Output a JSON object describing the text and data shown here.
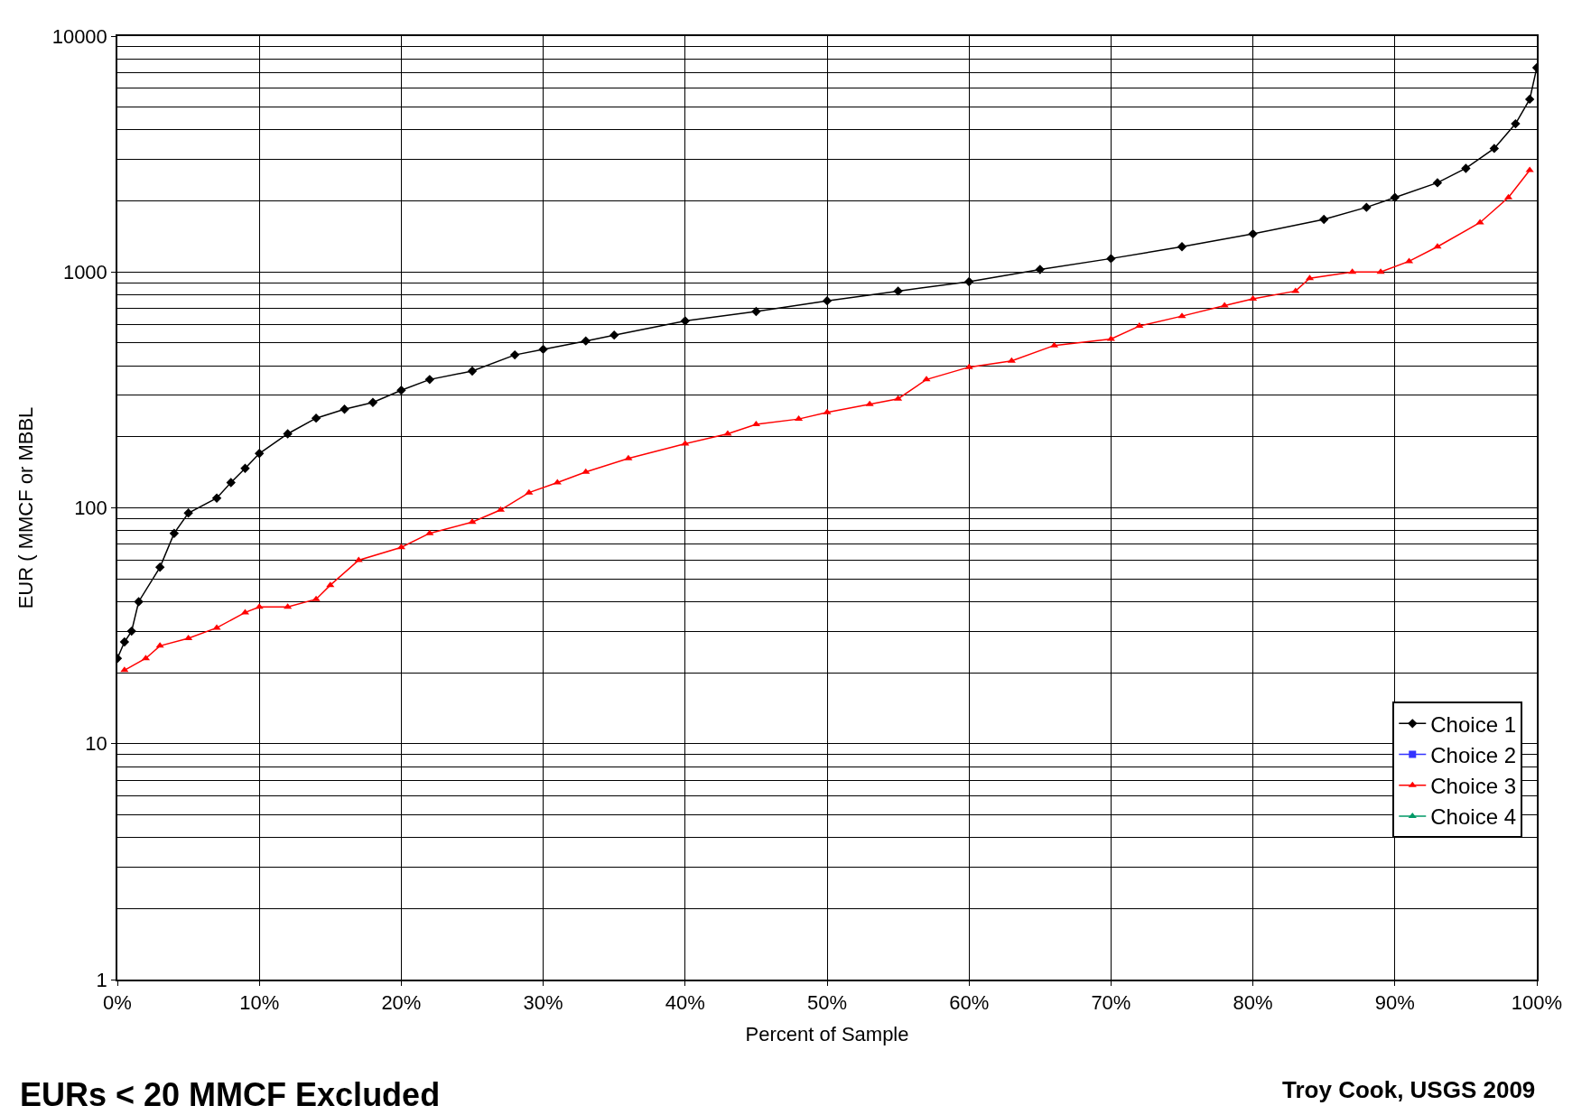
{
  "chart_data": {
    "type": "line",
    "xlabel": "Percent of Sample",
    "ylabel": "EUR ( MMCF or MBBL",
    "log": "y",
    "grid": true,
    "legend": "bottom right",
    "xlim": [
      0,
      100
    ],
    "ylim": [
      1,
      10000
    ],
    "xticks": [
      {
        "value": 0,
        "label": "0%"
      },
      {
        "value": 10,
        "label": "10%"
      },
      {
        "value": 20,
        "label": "20%"
      },
      {
        "value": 30,
        "label": "30%"
      },
      {
        "value": 40,
        "label": "40%"
      },
      {
        "value": 50,
        "label": "50%"
      },
      {
        "value": 60,
        "label": "60%"
      },
      {
        "value": 70,
        "label": "70%"
      },
      {
        "value": 80,
        "label": "80%"
      },
      {
        "value": 90,
        "label": "90%"
      },
      {
        "value": 100,
        "label": "100%"
      }
    ],
    "yticks": [
      1,
      10,
      100,
      1000,
      10000
    ],
    "annotations": [
      "EURs < 20 MMCF Excluded",
      "Troy Cook, USGS 2009"
    ],
    "series": [
      {
        "name": "Choice 1",
        "color": "#000000",
        "marker": "diamond",
        "x": [
          0,
          0.5,
          1,
          1.5,
          3,
          4,
          5,
          7,
          8,
          9,
          10,
          12,
          14,
          16,
          18,
          20,
          22,
          25,
          28,
          30,
          33,
          35,
          40,
          45,
          50,
          55,
          60,
          65,
          70,
          75,
          80,
          85,
          88,
          90,
          93,
          95,
          97,
          98.5,
          99.5,
          100
        ],
        "values": [
          23,
          27,
          30,
          40,
          56,
          78,
          95,
          110,
          128,
          147,
          170,
          206,
          240,
          262,
          280,
          315,
          350,
          380,
          445,
          470,
          510,
          540,
          620,
          680,
          755,
          830,
          910,
          1025,
          1140,
          1280,
          1450,
          1670,
          1880,
          2070,
          2390,
          2750,
          3340,
          4250,
          5400,
          7350
        ]
      },
      {
        "name": "Choice 2",
        "color": "#3333ff",
        "marker": "square"
      },
      {
        "name": "Choice 3",
        "color": "#ff0000",
        "marker": "triangle",
        "x": [
          0.5,
          2,
          3,
          5,
          7,
          9,
          10,
          12,
          14,
          15,
          17,
          20,
          22,
          25,
          27,
          29,
          31,
          33,
          36,
          40,
          43,
          45,
          48,
          50,
          53,
          55,
          57,
          60,
          63,
          66,
          70,
          72,
          75,
          78,
          80,
          83,
          84,
          87,
          89,
          91,
          93,
          96,
          98,
          99.5
        ],
        "values": [
          20.5,
          23,
          26,
          28,
          31,
          36,
          38,
          38,
          41,
          47,
          60,
          68,
          78,
          87,
          98,
          116,
          128,
          142,
          162,
          187,
          206,
          226,
          238,
          254,
          275,
          290,
          350,
          395,
          420,
          488,
          520,
          590,
          650,
          720,
          770,
          830,
          940,
          1000,
          1000,
          1110,
          1280,
          1620,
          2070,
          2700
        ]
      },
      {
        "name": "Choice 4",
        "color": "#009966",
        "marker": "triangle"
      }
    ]
  }
}
